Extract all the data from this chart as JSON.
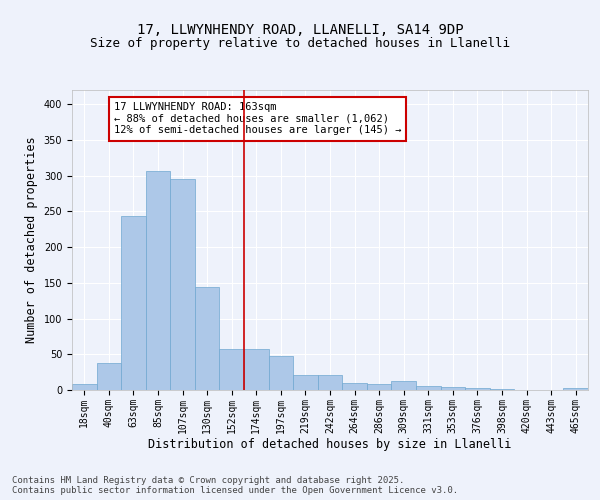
{
  "title_line1": "17, LLWYNHENDY ROAD, LLANELLI, SA14 9DP",
  "title_line2": "Size of property relative to detached houses in Llanelli",
  "xlabel": "Distribution of detached houses by size in Llanelli",
  "ylabel": "Number of detached properties",
  "categories": [
    "18sqm",
    "40sqm",
    "63sqm",
    "85sqm",
    "107sqm",
    "130sqm",
    "152sqm",
    "174sqm",
    "197sqm",
    "219sqm",
    "242sqm",
    "264sqm",
    "286sqm",
    "309sqm",
    "331sqm",
    "353sqm",
    "376sqm",
    "398sqm",
    "420sqm",
    "443sqm",
    "465sqm"
  ],
  "values": [
    8,
    38,
    244,
    307,
    295,
    144,
    57,
    57,
    47,
    21,
    21,
    10,
    8,
    12,
    6,
    4,
    3,
    1,
    0,
    0,
    3
  ],
  "bar_color": "#adc8e8",
  "bar_edge_color": "#6fa8d0",
  "vline_color": "#cc0000",
  "vline_index": 6.5,
  "annotation_text": "17 LLWYNHENDY ROAD: 163sqm\n← 88% of detached houses are smaller (1,062)\n12% of semi-detached houses are larger (145) →",
  "annotation_box_edgecolor": "#cc0000",
  "ylim": [
    0,
    420
  ],
  "yticks": [
    0,
    50,
    100,
    150,
    200,
    250,
    300,
    350,
    400
  ],
  "background_color": "#eef2fb",
  "grid_color": "#ffffff",
  "footer_text": "Contains HM Land Registry data © Crown copyright and database right 2025.\nContains public sector information licensed under the Open Government Licence v3.0.",
  "title_fontsize": 10,
  "subtitle_fontsize": 9,
  "axis_label_fontsize": 8.5,
  "tick_fontsize": 7,
  "annotation_fontsize": 7.5,
  "footer_fontsize": 6.5
}
